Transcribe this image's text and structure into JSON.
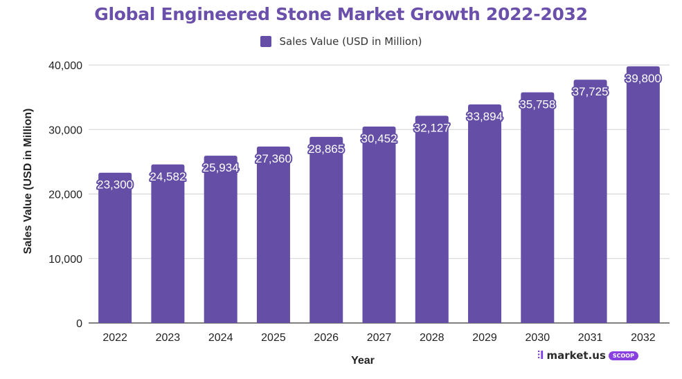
{
  "chart_data": {
    "type": "bar",
    "title": "Global Engineered Stone Market Growth 2022-2032",
    "legend": {
      "label": "Sales Value (USD in Million)",
      "placement": "top-center"
    },
    "xlabel": "Year",
    "ylabel": "Sales Value (USD in Million)",
    "ylim": [
      0,
      40000
    ],
    "yticks": [
      0,
      10000,
      20000,
      30000,
      40000
    ],
    "ytick_labels": [
      "0",
      "10,000",
      "20,000",
      "30,000",
      "40,000"
    ],
    "grid": true,
    "categories": [
      "2022",
      "2023",
      "2024",
      "2025",
      "2026",
      "2027",
      "2028",
      "2029",
      "2030",
      "2031",
      "2032"
    ],
    "series": [
      {
        "name": "Sales Value (USD in Million)",
        "color": "#644ea6",
        "values": [
          23300,
          24582,
          25934,
          27360,
          28865,
          30452,
          32127,
          33894,
          35758,
          37725,
          39800
        ],
        "data_labels": [
          "23,300",
          "24,582",
          "25,934",
          "27,360",
          "28,865",
          "30,452",
          "32,127",
          "33,894",
          "35,758",
          "37,725",
          "39,800"
        ]
      }
    ]
  },
  "colors": {
    "title": "#6a4fab",
    "bar": "#644ea6",
    "grid": "#d0d0d0",
    "axis": "#333333"
  },
  "watermark": {
    "brand": "market.us",
    "badge": "SCOOP"
  }
}
